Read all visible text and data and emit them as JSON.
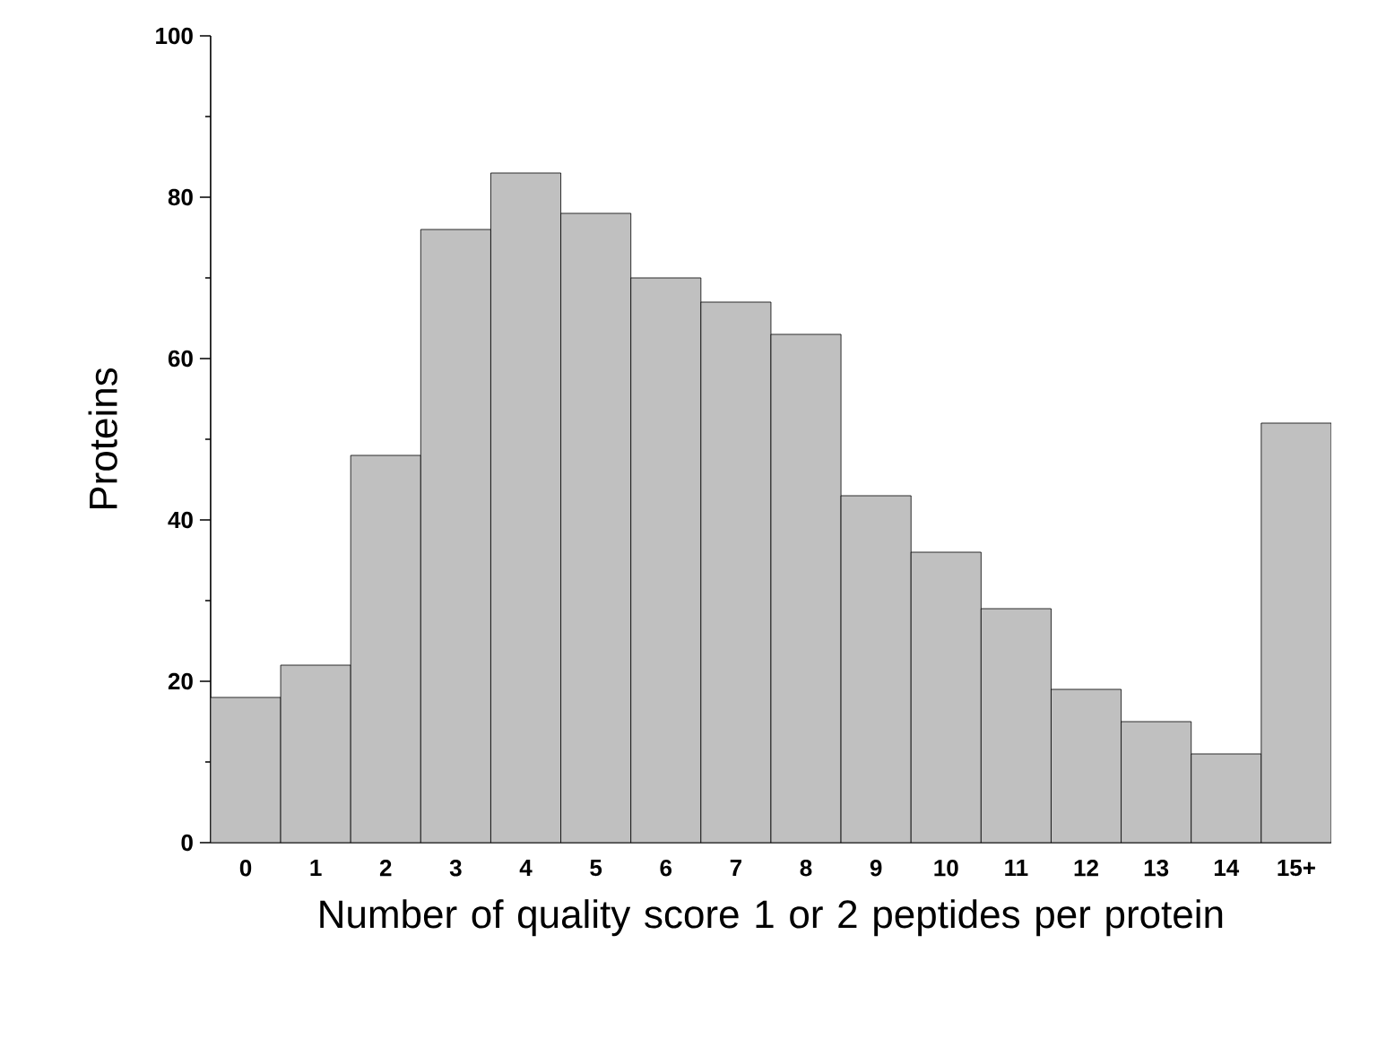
{
  "chart_data": {
    "type": "bar",
    "xlabel": "Number of quality score 1 or 2 peptides per protein",
    "ylabel": "Proteins",
    "categories": [
      "0",
      "1",
      "2",
      "3",
      "4",
      "5",
      "6",
      "7",
      "8",
      "9",
      "10",
      "11",
      "12",
      "13",
      "14",
      "15+"
    ],
    "values": [
      18,
      22,
      48,
      76,
      83,
      78,
      70,
      67,
      63,
      43,
      36,
      29,
      19,
      15,
      11,
      52
    ],
    "color": "#c0c0c0",
    "ylim": [
      0,
      100
    ],
    "yticks": [
      0,
      20,
      40,
      60,
      80,
      100
    ]
  }
}
